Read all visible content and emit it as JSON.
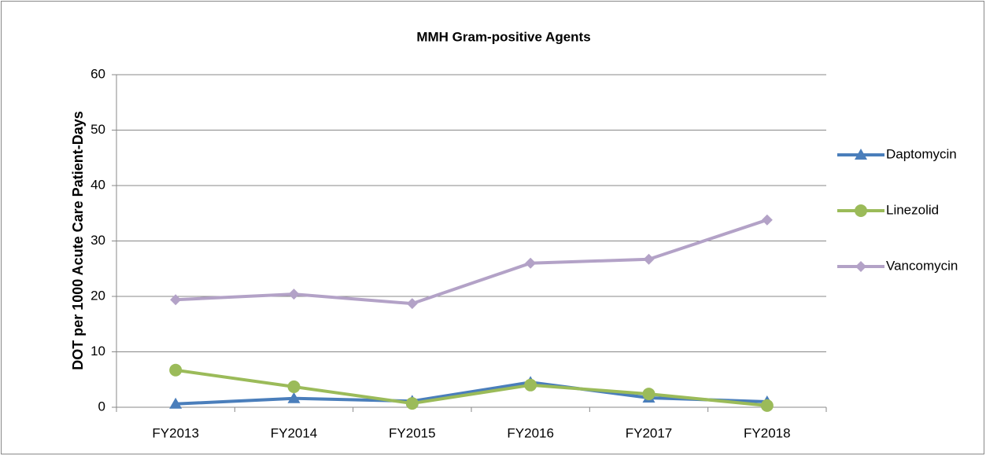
{
  "chart_data": {
    "type": "line",
    "title": "MMH Gram-positive Agents",
    "y_label": "DOT per 1000 Acute Care Patient-Days",
    "categories": [
      "FY2013",
      "FY2014",
      "FY2015",
      "FY2016",
      "FY2017",
      "FY2018"
    ],
    "series": [
      {
        "name": "Daptomycin",
        "color": "#4a7ebb",
        "values": [
          0.6,
          1.6,
          1.1,
          4.5,
          1.7,
          1.0
        ]
      },
      {
        "name": "Linezolid",
        "color": "#9bbb59",
        "values": [
          6.7,
          3.7,
          0.7,
          4.0,
          2.4,
          0.3
        ]
      },
      {
        "name": "Vancomycin",
        "color": "#b3a2c7",
        "values": [
          19.4,
          20.4,
          18.7,
          26.0,
          26.7,
          33.8
        ]
      }
    ],
    "ylim": [
      0,
      60
    ],
    "yticks": [
      0,
      10,
      20,
      30,
      40,
      50,
      60
    ],
    "grid": true,
    "legend": "right"
  }
}
